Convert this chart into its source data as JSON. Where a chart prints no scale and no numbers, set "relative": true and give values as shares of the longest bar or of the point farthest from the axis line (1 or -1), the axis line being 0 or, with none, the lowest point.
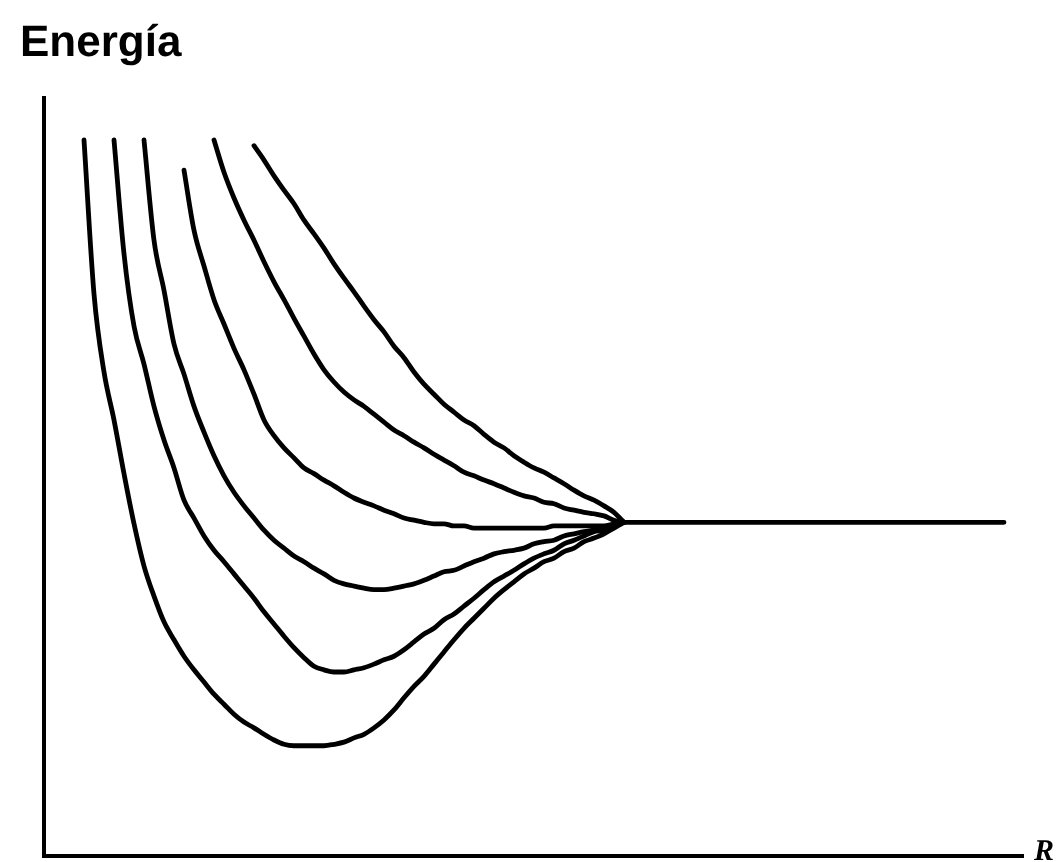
{
  "chart_data": {
    "type": "line",
    "ylabel": "Energía",
    "xlabel": "R",
    "relative": true,
    "marker": "none",
    "line_style": "solid",
    "categories": [
      null,
      null,
      null,
      null,
      null,
      null,
      null,
      null,
      null,
      null,
      null,
      null,
      null,
      null,
      null,
      null,
      null,
      null,
      null,
      null,
      null,
      null,
      null,
      null,
      null,
      null,
      null,
      null,
      null,
      null,
      null,
      null,
      null,
      null,
      null,
      null,
      null,
      null,
      null,
      null,
      null,
      null,
      null,
      null,
      null,
      null,
      null,
      null,
      null,
      null,
      null,
      null,
      null,
      null,
      null,
      null,
      null,
      null,
      null,
      null,
      null,
      null,
      null,
      null,
      null,
      null,
      null,
      null,
      null,
      null,
      null,
      null,
      null,
      null,
      null,
      null,
      null,
      null,
      null,
      null,
      null,
      null,
      null,
      null,
      null,
      null,
      null,
      null,
      null,
      null,
      null,
      null,
      null,
      null,
      null,
      null,
      null,
      null,
      null
    ],
    "series": [
      {
        "color": "#000000",
        "values": [
          null,
          null,
          null,
          null,
          1.0,
          0.785,
          0.676,
          0.609,
          0.534,
          0.464,
          0.405,
          0.363,
          0.327,
          0.302,
          0.279,
          0.26,
          0.243,
          0.226,
          0.212,
          0.198,
          0.187,
          0.179,
          0.17,
          0.162,
          0.156,
          0.154,
          0.154,
          0.154,
          0.154,
          0.156,
          0.159,
          0.165,
          0.17,
          0.179,
          0.19,
          0.204,
          0.221,
          0.237,
          0.251,
          0.268,
          0.285,
          0.302,
          0.318,
          0.332,
          0.346,
          0.36,
          0.372,
          0.383,
          0.394,
          0.402,
          0.411,
          0.416,
          0.425,
          0.43,
          0.439,
          0.444,
          0.45,
          0.458,
          0.466,
          null,
          null,
          null,
          null,
          null,
          null,
          null,
          null,
          null,
          null,
          null,
          null,
          null,
          null,
          null,
          null,
          null,
          null,
          null,
          null,
          null,
          null,
          null,
          null,
          null,
          null,
          null,
          null,
          null,
          null,
          null,
          null,
          null,
          null,
          null,
          null,
          null,
          null,
          null,
          null
        ]
      },
      {
        "color": "#000000",
        "values": [
          null,
          null,
          null,
          null,
          null,
          null,
          null,
          1.0,
          0.841,
          0.74,
          0.687,
          0.628,
          0.581,
          0.542,
          0.497,
          0.472,
          0.447,
          0.427,
          0.411,
          0.394,
          0.377,
          0.36,
          0.341,
          0.324,
          0.307,
          0.291,
          0.277,
          0.265,
          0.26,
          0.257,
          0.257,
          0.26,
          0.263,
          0.268,
          0.274,
          0.279,
          0.288,
          0.299,
          0.31,
          0.318,
          0.33,
          0.338,
          0.349,
          0.36,
          0.372,
          0.383,
          0.391,
          0.399,
          0.408,
          0.416,
          0.422,
          0.427,
          0.436,
          0.441,
          0.447,
          0.453,
          0.455,
          0.461,
          0.466,
          null,
          null,
          null,
          null,
          null,
          null,
          null,
          null,
          null,
          null,
          null,
          null,
          null,
          null,
          null,
          null,
          null,
          null,
          null,
          null,
          null,
          null,
          null,
          null,
          null,
          null,
          null,
          null,
          null,
          null,
          null,
          null,
          null,
          null,
          null,
          null,
          null,
          null,
          null,
          null
        ]
      },
      {
        "color": "#000000",
        "values": [
          null,
          null,
          null,
          null,
          null,
          null,
          null,
          null,
          null,
          null,
          1.0,
          0.86,
          0.79,
          0.715,
          0.673,
          0.628,
          0.592,
          0.559,
          0.531,
          0.508,
          0.489,
          0.472,
          0.455,
          0.441,
          0.43,
          0.419,
          0.411,
          0.402,
          0.394,
          0.385,
          0.38,
          0.377,
          0.374,
          0.372,
          0.372,
          0.374,
          0.377,
          0.38,
          0.385,
          0.391,
          0.397,
          0.399,
          0.405,
          0.411,
          0.416,
          0.422,
          0.425,
          0.427,
          0.43,
          0.436,
          0.439,
          0.441,
          0.447,
          0.45,
          0.453,
          0.455,
          0.458,
          0.461,
          0.466,
          null,
          null,
          null,
          null,
          null,
          null,
          null,
          null,
          null,
          null,
          null,
          null,
          null,
          null,
          null,
          null,
          null,
          null,
          null,
          null,
          null,
          null,
          null,
          null,
          null,
          null,
          null,
          null,
          null,
          null,
          null,
          null,
          null,
          null,
          null,
          null,
          null,
          null,
          null,
          null
        ]
      },
      {
        "color": "#000000",
        "values": [
          null,
          null,
          null,
          null,
          null,
          null,
          null,
          null,
          null,
          null,
          null,
          null,
          null,
          null,
          0.958,
          0.874,
          0.824,
          0.777,
          0.743,
          0.709,
          0.679,
          0.645,
          0.609,
          0.587,
          0.57,
          0.556,
          0.542,
          0.534,
          0.525,
          0.517,
          0.508,
          0.5,
          0.494,
          0.489,
          0.483,
          0.478,
          0.472,
          0.469,
          0.466,
          0.464,
          0.464,
          0.461,
          0.461,
          0.458,
          0.458,
          0.458,
          0.458,
          0.458,
          0.458,
          0.458,
          0.458,
          0.461,
          0.461,
          0.461,
          0.461,
          0.461,
          0.461,
          0.464,
          0.466,
          0.466,
          0.466,
          0.466,
          0.466,
          0.466,
          0.466,
          0.466,
          0.466,
          0.466,
          0.466,
          0.466,
          0.466,
          0.466,
          0.466,
          0.466,
          0.466,
          0.466,
          0.466,
          0.466,
          0.466,
          0.466,
          0.466,
          0.466,
          0.466,
          0.466,
          0.466,
          0.466,
          0.466,
          0.466,
          0.466,
          0.466,
          0.466,
          0.466,
          0.466,
          0.466,
          0.466,
          0.466,
          0.466,
          null,
          null
        ]
      },
      {
        "color": "#000000",
        "values": [
          null,
          null,
          null,
          null,
          null,
          null,
          null,
          null,
          null,
          null,
          null,
          null,
          null,
          null,
          null,
          null,
          null,
          1.0,
          0.955,
          0.919,
          0.888,
          0.86,
          0.83,
          0.802,
          0.777,
          0.751,
          0.726,
          0.701,
          0.679,
          0.662,
          0.648,
          0.637,
          0.628,
          0.617,
          0.606,
          0.595,
          0.587,
          0.578,
          0.57,
          0.561,
          0.553,
          0.545,
          0.536,
          0.531,
          0.525,
          0.52,
          0.514,
          0.508,
          0.503,
          0.5,
          0.494,
          0.492,
          0.486,
          0.483,
          0.48,
          0.478,
          0.475,
          0.469,
          0.466,
          null,
          null,
          null,
          null,
          null,
          null,
          null,
          null,
          null,
          null,
          null,
          null,
          null,
          null,
          null,
          null,
          null,
          null,
          null,
          null,
          null,
          null,
          null,
          null,
          null,
          null,
          null,
          null,
          null,
          null,
          null,
          null,
          null,
          null,
          null,
          null,
          null,
          null,
          null,
          null
        ]
      },
      {
        "color": "#000000",
        "values": [
          null,
          null,
          null,
          null,
          null,
          null,
          null,
          null,
          null,
          null,
          null,
          null,
          null,
          null,
          null,
          null,
          null,
          null,
          null,
          null,
          null,
          0.992,
          0.972,
          0.95,
          0.93,
          0.911,
          0.888,
          0.869,
          0.849,
          0.827,
          0.807,
          0.788,
          0.768,
          0.749,
          0.732,
          0.712,
          0.696,
          0.676,
          0.659,
          0.645,
          0.631,
          0.62,
          0.609,
          0.601,
          0.589,
          0.578,
          0.57,
          0.559,
          0.55,
          0.542,
          0.536,
          0.528,
          0.52,
          0.511,
          0.503,
          0.497,
          0.489,
          0.48,
          0.466,
          null,
          null,
          null,
          null,
          null,
          null,
          null,
          null,
          null,
          null,
          null,
          null,
          null,
          null,
          null,
          null,
          null,
          null,
          null,
          null,
          null,
          null,
          null,
          null,
          null,
          null,
          null,
          null,
          null,
          null,
          null,
          null,
          null,
          null,
          null,
          null,
          null,
          null,
          null,
          null
        ]
      }
    ]
  }
}
